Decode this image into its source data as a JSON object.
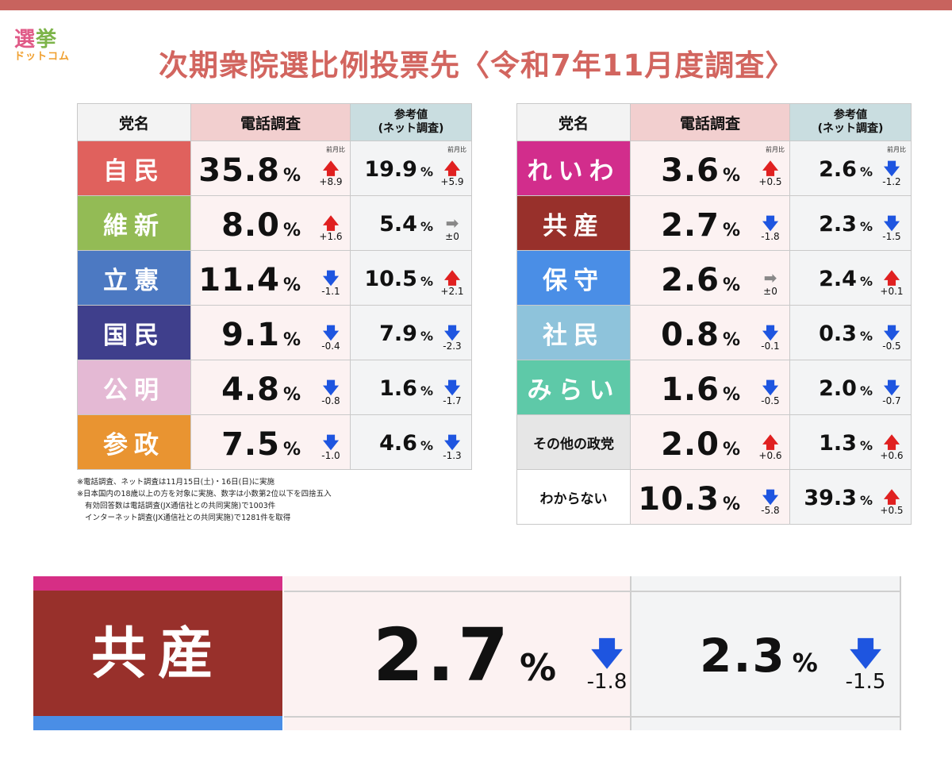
{
  "logo": {
    "line1a": "選",
    "line1b": "挙",
    "line2": "ドットコム"
  },
  "title": "次期衆院選比例投票先〈令和7年11月度調査〉",
  "colors": {
    "up": "#e02020",
    "down": "#1e55e0",
    "flat": "#888888"
  },
  "headers": {
    "party": "党名",
    "phone": "電話調査",
    "net_line1": "参考値",
    "net_line2": "(ネット調査)",
    "prev_label": "前月比"
  },
  "left_table": [
    {
      "name": "自民",
      "color": "#e0615d",
      "phone": "35.8",
      "phone_delta": "+8.9",
      "phone_dir": "up",
      "net": "19.9",
      "net_delta": "+5.9",
      "net_dir": "up"
    },
    {
      "name": "維新",
      "color": "#93bb55",
      "phone": "8.0",
      "phone_delta": "+1.6",
      "phone_dir": "up",
      "net": "5.4",
      "net_delta": "±0",
      "net_dir": "flat"
    },
    {
      "name": "立憲",
      "color": "#4c79c2",
      "phone": "11.4",
      "phone_delta": "-1.1",
      "phone_dir": "down",
      "net": "10.5",
      "net_delta": "+2.1",
      "net_dir": "up"
    },
    {
      "name": "国民",
      "color": "#3f3f8c",
      "phone": "9.1",
      "phone_delta": "-0.4",
      "phone_dir": "down",
      "net": "7.9",
      "net_delta": "-2.3",
      "net_dir": "down"
    },
    {
      "name": "公明",
      "color": "#e4b9d4",
      "phone": "4.8",
      "phone_delta": "-0.8",
      "phone_dir": "down",
      "net": "1.6",
      "net_delta": "-1.7",
      "net_dir": "down"
    },
    {
      "name": "参政",
      "color": "#e99431",
      "phone": "7.5",
      "phone_delta": "-1.0",
      "phone_dir": "down",
      "net": "4.6",
      "net_delta": "-1.3",
      "net_dir": "down"
    }
  ],
  "right_table": [
    {
      "name": "れいわ",
      "color": "#d22d8c",
      "phone": "3.6",
      "phone_delta": "+0.5",
      "phone_dir": "up",
      "net": "2.6",
      "net_delta": "-1.2",
      "net_dir": "down"
    },
    {
      "name": "共産",
      "color": "#98302b",
      "phone": "2.7",
      "phone_delta": "-1.8",
      "phone_dir": "down",
      "net": "2.3",
      "net_delta": "-1.5",
      "net_dir": "down"
    },
    {
      "name": "保守",
      "color": "#4a8ee6",
      "phone": "2.6",
      "phone_delta": "±0",
      "phone_dir": "flat",
      "net": "2.4",
      "net_delta": "+0.1",
      "net_dir": "up"
    },
    {
      "name": "社民",
      "color": "#8ec3db",
      "phone": "0.8",
      "phone_delta": "-0.1",
      "phone_dir": "down",
      "net": "0.3",
      "net_delta": "-0.5",
      "net_dir": "down"
    },
    {
      "name": "みらい",
      "color": "#5ec9a8",
      "phone": "1.6",
      "phone_delta": "-0.5",
      "phone_dir": "down",
      "net": "2.0",
      "net_delta": "-0.7",
      "net_dir": "down"
    },
    {
      "name": "その他の政党",
      "color": "#e6e6e6",
      "dark": true,
      "phone": "2.0",
      "phone_delta": "+0.6",
      "phone_dir": "up",
      "net": "1.3",
      "net_delta": "+0.6",
      "net_dir": "up"
    },
    {
      "name": "わからない",
      "color": "#ffffff",
      "dark": true,
      "phone": "10.3",
      "phone_delta": "-5.8",
      "phone_dir": "down",
      "net": "39.3",
      "net_delta": "+0.5",
      "net_dir": "up"
    }
  ],
  "notes": [
    "※電話調査、ネット調査は11月15日(土)・16日(日)に実施",
    "※日本国内の18歳以上の方を対象に実施、数字は小数第2位以下を四捨五入",
    "有効回答数は電話調査(JX通信社との共同実施)で1003件",
    "インターネット調査(JX通信社との共同実施)で1281件を取得"
  ],
  "zoom": {
    "name": "共産",
    "phone": "2.7",
    "phone_delta": "-1.8",
    "net": "2.3",
    "net_delta": "-1.5"
  },
  "symbols": {
    "pct": "%",
    "up": "🡅",
    "down": "🡇",
    "flat": "➡"
  }
}
